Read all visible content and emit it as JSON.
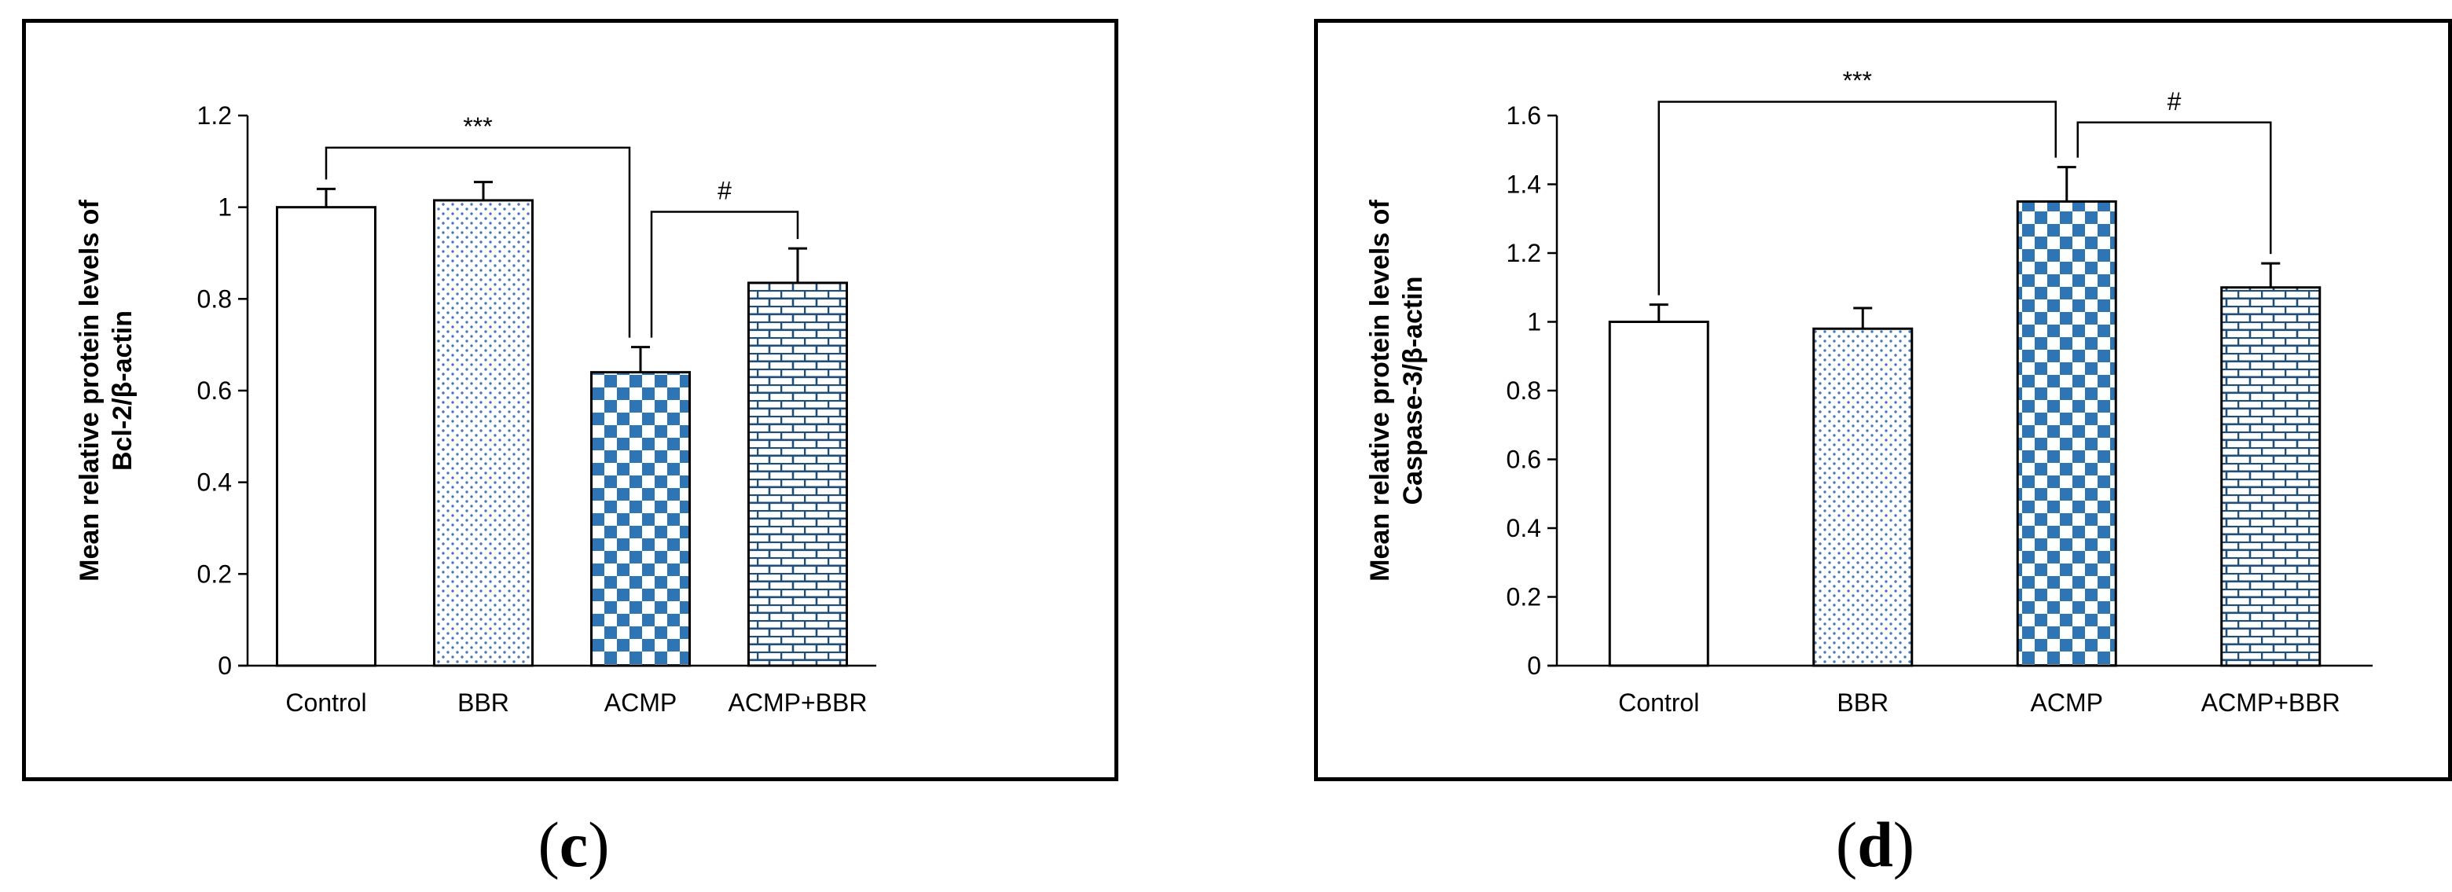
{
  "colors": {
    "axis": "#000000",
    "accent_blue": "#2E75B6",
    "dark_blue": "#1F4E79",
    "dot_blue": "#4A7AB8",
    "bar_fill": "#ffffff"
  },
  "charts": [
    {
      "panel_label": "c",
      "chart_data": {
        "type": "bar",
        "title": "",
        "xlabel": "",
        "ylabel": [
          "Mean relative protein levels of",
          "Bcl-2/β-actin"
        ],
        "categories": [
          "Control",
          "BBR",
          "ACMP",
          "ACMP+BBR"
        ],
        "values": [
          1.0,
          1.015,
          0.64,
          0.835
        ],
        "errors": [
          0.04,
          0.04,
          0.055,
          0.075
        ],
        "ylim": [
          0,
          1.2
        ],
        "yticks": [
          0,
          0.2,
          0.4,
          0.6,
          0.8,
          1,
          1.2
        ],
        "ytick_labels": [
          "0",
          "0.2",
          "0.4",
          "0.6",
          "0.8",
          "1",
          "1.2"
        ],
        "patterns": [
          "plain",
          "dots",
          "checker",
          "brick"
        ],
        "annotations": [
          {
            "from": 0,
            "to": 2,
            "level": 1.13,
            "text": "***"
          },
          {
            "from": 2,
            "to": 3,
            "level": 0.99,
            "text": "#"
          }
        ]
      }
    },
    {
      "panel_label": "d",
      "chart_data": {
        "type": "bar",
        "title": "",
        "xlabel": "",
        "ylabel": [
          "Mean relative protein levels of",
          "Caspase-3/β-actin"
        ],
        "categories": [
          "Control",
          "BBR",
          "ACMP",
          "ACMP+BBR"
        ],
        "values": [
          1.0,
          0.98,
          1.35,
          1.1
        ],
        "errors": [
          0.05,
          0.06,
          0.1,
          0.07
        ],
        "ylim": [
          0,
          1.6
        ],
        "yticks": [
          0,
          0.2,
          0.4,
          0.6,
          0.8,
          1,
          1.2,
          1.4,
          1.6
        ],
        "ytick_labels": [
          "0",
          "0.2",
          "0.4",
          "0.6",
          "0.8",
          "1",
          "1.2",
          "1.4",
          "1.6"
        ],
        "patterns": [
          "plain",
          "dots",
          "checker",
          "brick"
        ],
        "annotations": [
          {
            "from": 0,
            "to": 2,
            "level": 1.64,
            "text": "***"
          },
          {
            "from": 2,
            "to": 3,
            "level": 1.58,
            "text": "#"
          }
        ]
      }
    }
  ]
}
